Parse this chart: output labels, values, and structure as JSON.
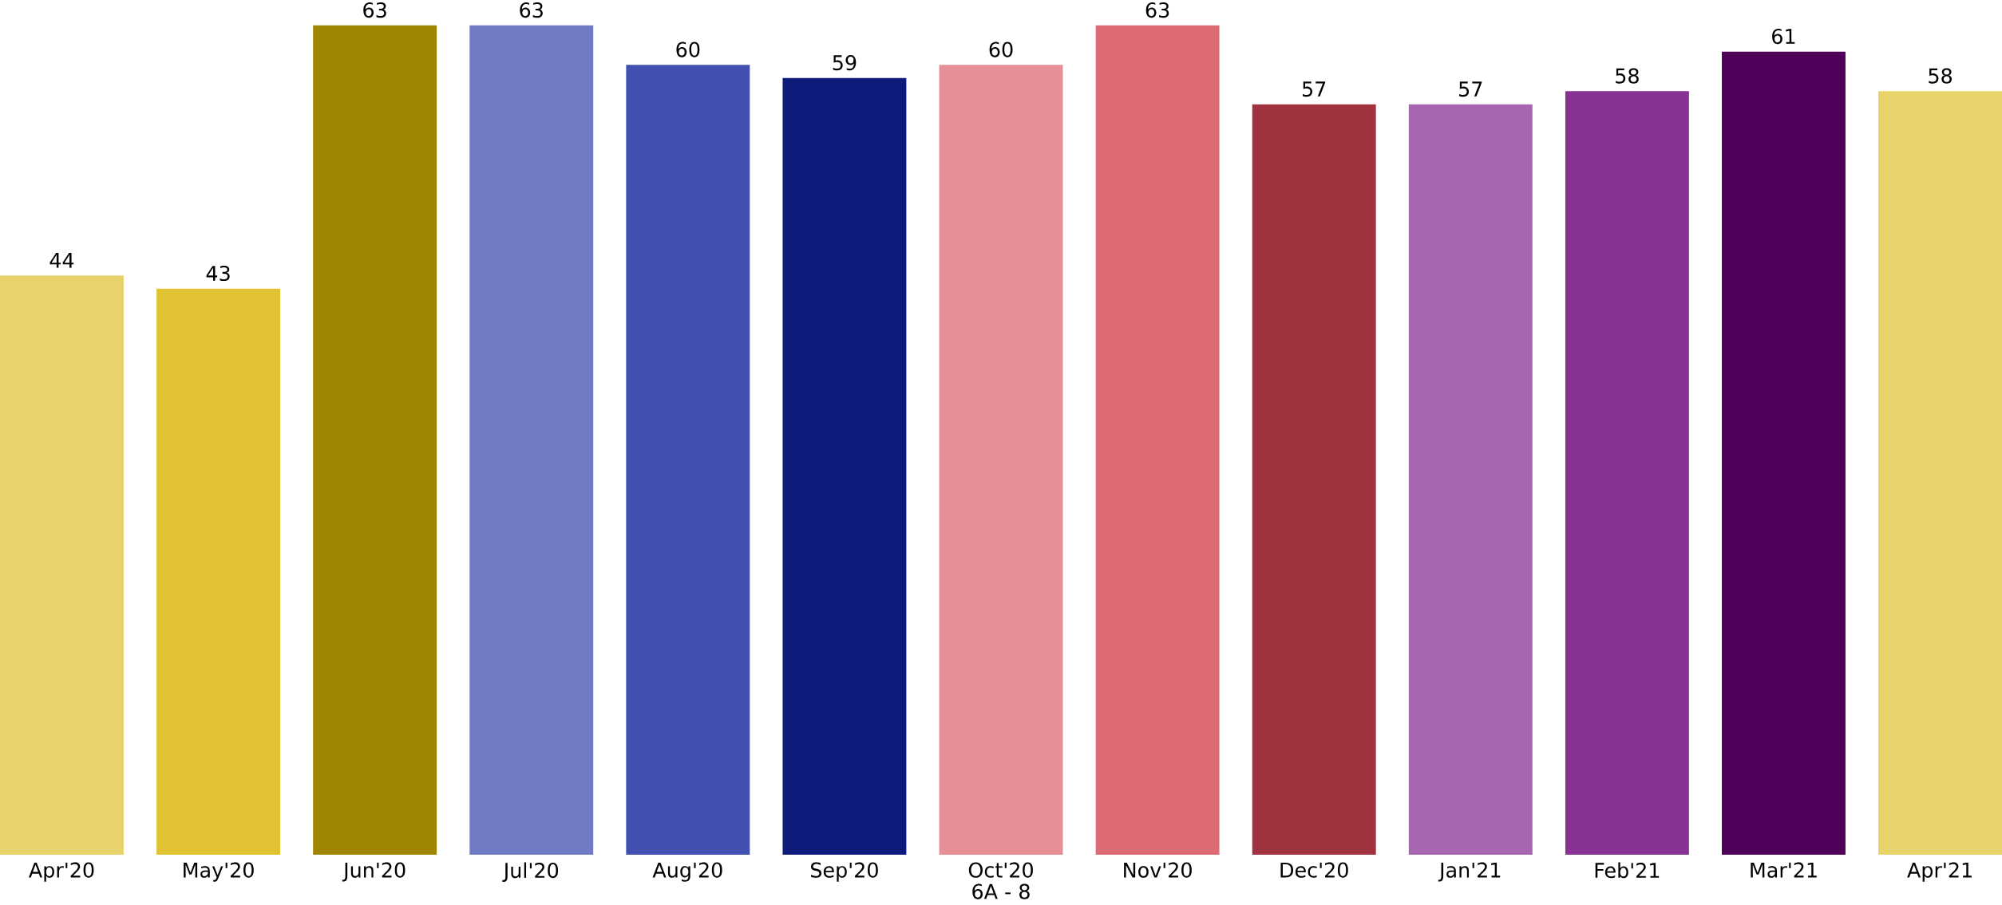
{
  "chart_data": {
    "type": "bar",
    "categories": [
      "Apr'20",
      "May'20",
      "Jun'20",
      "Jul'20",
      "Aug'20",
      "Sep'20",
      "Oct'20",
      "Nov'20",
      "Dec'20",
      "Jan'21",
      "Feb'21",
      "Mar'21",
      "Apr'21"
    ],
    "values": [
      44,
      43,
      63,
      63,
      60,
      59,
      60,
      63,
      57,
      57,
      58,
      61,
      58
    ],
    "colors": [
      "#e8d26a",
      "#e0c232",
      "#a08600",
      "#717bc5",
      "#4250b2",
      "#0f1b7a",
      "#e78f96",
      "#de6b74",
      "#a13340",
      "#a666b0",
      "#883294",
      "#4f0059",
      "#e8d26a"
    ],
    "data_labels": true,
    "annotations": [
      "6A - 8"
    ]
  }
}
